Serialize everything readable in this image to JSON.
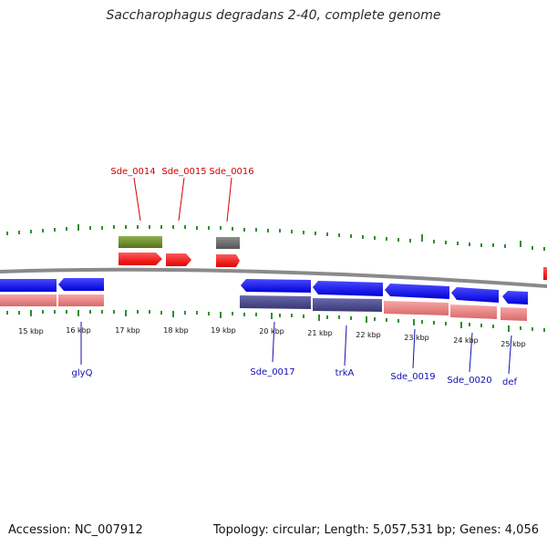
{
  "title": "Saccharophagus degradans 2-40, complete genome",
  "footer": {
    "accession": "Accession: NC_007912",
    "summary": "Topology: circular; Length: 5,057,531 bp; Genes: 4,056"
  },
  "colors": {
    "backbone": "#8a8a8a",
    "tick": "#2f8f2f",
    "label_top": "#d40000",
    "label_bottom": "#1010b0",
    "cds_forward": "#ff0000",
    "cds_reverse": "#0000ff",
    "gene_forward_gray": "#6e6e6e",
    "gene_forward_green": "#6b8e23",
    "gene_reverse_purple": "#4a4a8c",
    "gene_reverse_pink": "#ee7d7d"
  },
  "ruler": {
    "unit": "kbp",
    "labels": [
      "15 kbp",
      "16 kbp",
      "17 kbp",
      "18 kbp",
      "19 kbp",
      "20 kbp",
      "21 kbp",
      "22 kbp",
      "23 kbp",
      "24 kbp",
      "25 kbp"
    ]
  },
  "features": {
    "forward": [
      {
        "name": "Sde_0014",
        "track": "gene",
        "color": "gene_forward_green"
      },
      {
        "name": "Sde_0014",
        "track": "cds",
        "color": "cds_forward"
      },
      {
        "name": "Sde_0015",
        "track": "cds",
        "color": "cds_forward"
      },
      {
        "name": "Sde_0016",
        "track": "gene",
        "color": "gene_forward_gray"
      },
      {
        "name": "Sde_0016",
        "track": "cds",
        "color": "cds_forward"
      }
    ],
    "reverse": [
      {
        "name": "glyQ",
        "track": "cds"
      },
      {
        "name": "Sde_0017",
        "track": "cds"
      },
      {
        "name": "trkA",
        "track": "cds"
      },
      {
        "name": "Sde_0019",
        "track": "cds"
      },
      {
        "name": "Sde_0020",
        "track": "cds"
      },
      {
        "name": "def",
        "track": "cds"
      }
    ]
  },
  "labels_top": [
    "Sde_0014",
    "Sde_0015",
    "Sde_0016"
  ],
  "labels_bottom": [
    "glyQ",
    "Sde_0017",
    "trkA",
    "Sde_0019",
    "Sde_0020",
    "def"
  ]
}
